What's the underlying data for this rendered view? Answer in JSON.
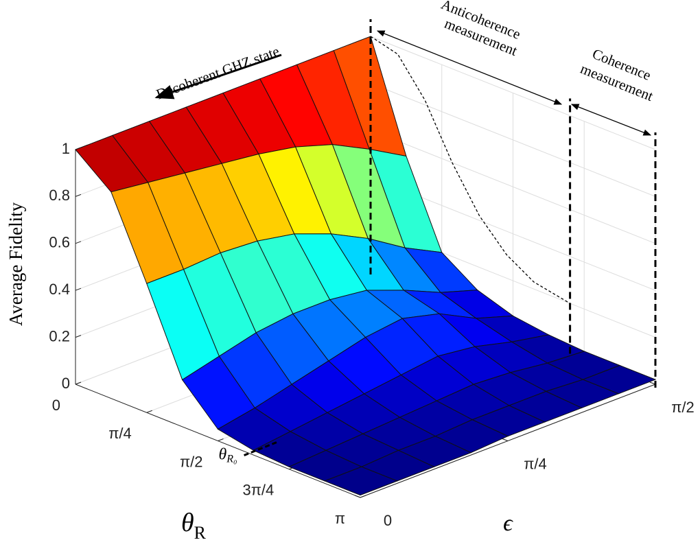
{
  "chart_data": {
    "type": "surface",
    "zlabel": "Average Fidelity",
    "xlabel": {
      "symbol": "θ",
      "subscript": "R"
    },
    "ylabel": "ϵ",
    "x": [
      0,
      0.3927,
      0.7854,
      1.1781,
      1.5708,
      1.9635,
      2.3562,
      2.7489,
      3.1416
    ],
    "y": [
      0,
      0.1963,
      0.3927,
      0.589,
      0.7854,
      0.9817,
      1.1781,
      1.3744,
      1.5708
    ],
    "z": [
      [
        1,
        1,
        1,
        1,
        1,
        1,
        1,
        1,
        1
      ],
      [
        0.88,
        0.86,
        0.84,
        0.82,
        0.8,
        0.77,
        0.72,
        0.64,
        0.55
      ],
      [
        0.55,
        0.55,
        0.56,
        0.55,
        0.52,
        0.46,
        0.38,
        0.28,
        0.2
      ],
      [
        0.2,
        0.24,
        0.28,
        0.3,
        0.3,
        0.28,
        0.22,
        0.15,
        0.1
      ],
      [
        0.05,
        0.08,
        0.12,
        0.16,
        0.2,
        0.22,
        0.18,
        0.1,
        0.05
      ],
      [
        0.02,
        0.04,
        0.06,
        0.08,
        0.1,
        0.12,
        0.1,
        0.06,
        0.03
      ],
      [
        0.01,
        0.02,
        0.03,
        0.04,
        0.05,
        0.06,
        0.05,
        0.03,
        0.02
      ],
      [
        0.01,
        0.01,
        0.02,
        0.02,
        0.03,
        0.03,
        0.03,
        0.02,
        0.02
      ],
      [
        0.01,
        0.01,
        0.01,
        0.01,
        0.02,
        0.02,
        0.02,
        0.02,
        0.02
      ]
    ],
    "colormap": "jet",
    "xlim": [
      0,
      3.1416
    ],
    "ylim": [
      0,
      1.5708
    ],
    "zlim": [
      0,
      1
    ],
    "xticks": [
      {
        "value": 0,
        "label": "0"
      },
      {
        "value": 0.7854,
        "label": "π/4"
      },
      {
        "value": 1.5708,
        "label": "π/2"
      },
      {
        "value": 2.3562,
        "label": "3π/4"
      },
      {
        "value": 3.1416,
        "label": "π"
      }
    ],
    "yticks": [
      {
        "value": 0,
        "label": "0"
      },
      {
        "value": 0.7854,
        "label": "π/4"
      },
      {
        "value": 1.5708,
        "label": "π/2"
      }
    ],
    "zticks": [
      0,
      0.2,
      0.4,
      0.6,
      0.8,
      1
    ],
    "grid": true,
    "boundary_curve": {
      "x": [
        0,
        0.3,
        0.6,
        0.9,
        1.2,
        1.5,
        1.8,
        2.2
      ],
      "values": [
        1,
        0.97,
        0.82,
        0.6,
        0.42,
        0.3,
        0.23,
        0.2
      ]
    },
    "theta_R0": {
      "value": 2.2,
      "symbol": "θ",
      "subscript": "R₀"
    },
    "annotations": {
      "decoherent": "Decoherent GHZ state",
      "anticoherence": [
        "Anticoherence",
        "measurement"
      ],
      "coherence": [
        "Coherence",
        "measurement"
      ]
    }
  }
}
